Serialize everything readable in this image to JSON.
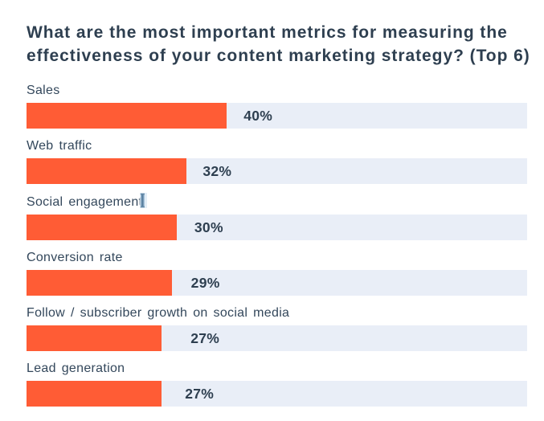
{
  "page": {
    "background": "#ffffff"
  },
  "chart_data": {
    "type": "bar",
    "orientation": "horizontal",
    "title": "What are the most important metrics for measuring the effectiveness of your content marketing strategy? (Top 6)",
    "categories": [
      "Sales",
      "Web traffic",
      "Social engagement",
      "Conversion rate",
      "Follow / subscriber growth on social media",
      "Lead generation"
    ],
    "values": [
      40,
      32,
      30,
      29,
      27,
      27
    ],
    "value_labels": [
      "40%",
      "32%",
      "30%",
      "29%",
      "27%",
      "27%"
    ],
    "unit": "percent",
    "xlim": [
      0,
      100
    ],
    "grid": false,
    "legend": false,
    "value_label_position": "right-of-bar",
    "colors": {
      "bar": "#ff5c35",
      "track": "#e9eef7",
      "text": "#2e3f50"
    }
  },
  "annotations": {
    "text_cursor": {
      "type": "i-beam-text-cursor",
      "over_label_index": 2,
      "description": "I-beam mouse cursor over the end of the Social engagement label"
    }
  }
}
